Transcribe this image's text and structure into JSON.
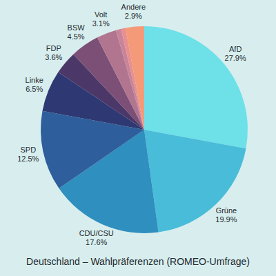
{
  "chart_data": {
    "type": "pie",
    "title": "Deutschland – Wahlpräferenzen (ROMEO-Umfrage)",
    "categories": [
      "AfD",
      "Grüne",
      "CDU/CSU",
      "SPD",
      "Linke",
      "FDP",
      "BSW",
      "Volt",
      null,
      null,
      "Andere"
    ],
    "values": [
      27.9,
      19.9,
      17.6,
      12.5,
      6.5,
      3.6,
      4.5,
      3.1,
      0.8,
      0.7,
      2.9
    ],
    "value_labels": [
      "27.9%",
      "19.9%",
      "17.6%",
      "12.5%",
      "6.5%",
      "3.6%",
      "4.5%",
      "3.1%",
      null,
      null,
      "2.9%"
    ],
    "colors": [
      "#6ee0e8",
      "#48bcd8",
      "#2f8fbe",
      "#2e5f9c",
      "#2e3872",
      "#4b3868",
      "#7c4f76",
      "#b27590",
      "#c98499",
      "#e88f8f",
      "#f59a78"
    ],
    "data_labels": true
  }
}
